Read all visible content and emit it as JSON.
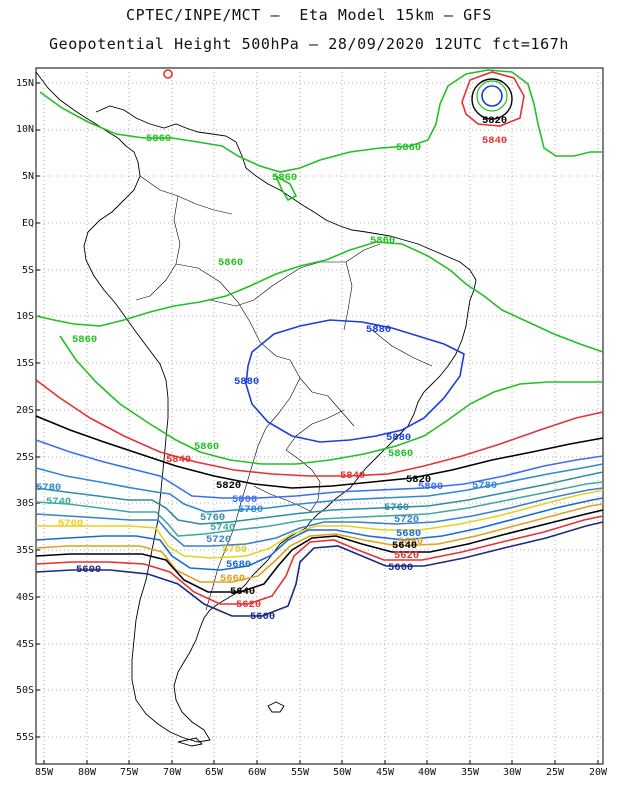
{
  "header": {
    "line1": "CPTEC/INPE/MCT –  Eta Model 15km – GFS",
    "line2": "Geopotential Height 500hPa – 28/09/2020 12UTC fct=167h"
  },
  "axes": {
    "lat_labels": [
      "15N",
      "10N",
      "5N",
      "EQ",
      "5S",
      "10S",
      "15S",
      "20S",
      "25S",
      "30S",
      "35S",
      "40S",
      "45S",
      "50S",
      "55S"
    ],
    "lon_labels": [
      "85W",
      "80W",
      "75W",
      "70W",
      "65W",
      "60W",
      "55W",
      "50W",
      "45W",
      "40W",
      "35W",
      "30W",
      "25W",
      "20W"
    ]
  },
  "colors": {
    "c5880": "#1a3fd8",
    "c5860": "#22c022",
    "c5840": "#e63232",
    "c5820": "#000000",
    "c5800": "#3c6ef0",
    "c5780": "#2a8ad8",
    "c5760": "#2d8fa0",
    "c5740": "#40aaa0",
    "c5720": "#3a80c8",
    "c5700": "#e8d020",
    "c5680": "#1a6ad0",
    "c5660": "#e0a020",
    "c5640": "#000000",
    "c5620": "#e63232",
    "c5600": "#1a2a80",
    "coast": "#000000",
    "grid": "#999999"
  },
  "contour_labels": [
    {
      "text": "5820",
      "color": "c5820"
    },
    {
      "text": "5840",
      "color": "c5840"
    },
    {
      "text": "5860",
      "color": "c5860"
    },
    {
      "text": "5860",
      "color": "c5860"
    },
    {
      "text": "5860",
      "color": "c5860"
    },
    {
      "text": "5860",
      "color": "c5860"
    },
    {
      "text": "5860",
      "color": "c5860"
    },
    {
      "text": "5860",
      "color": "c5860"
    },
    {
      "text": "5880",
      "color": "c5880"
    },
    {
      "text": "5880",
      "color": "c5880"
    },
    {
      "text": "5880",
      "color": "c5880"
    },
    {
      "text": "5860",
      "color": "c5860"
    },
    {
      "text": "5860",
      "color": "c5860"
    },
    {
      "text": "5840",
      "color": "c5840"
    },
    {
      "text": "5840",
      "color": "c5840"
    },
    {
      "text": "5820",
      "color": "c5820"
    },
    {
      "text": "5820",
      "color": "c5820"
    },
    {
      "text": "5800",
      "color": "c5800"
    },
    {
      "text": "5800",
      "color": "c5800"
    },
    {
      "text": "5780",
      "color": "c5780"
    },
    {
      "text": "5780",
      "color": "c5780"
    },
    {
      "text": "5780",
      "color": "c5780"
    },
    {
      "text": "5760",
      "color": "c5760"
    },
    {
      "text": "5760",
      "color": "c5760"
    },
    {
      "text": "5740",
      "color": "c5740"
    },
    {
      "text": "5740",
      "color": "c5740"
    },
    {
      "text": "5720",
      "color": "c5720"
    },
    {
      "text": "5720",
      "color": "c5720"
    },
    {
      "text": "5700",
      "color": "c5700"
    },
    {
      "text": "5700",
      "color": "c5700"
    },
    {
      "text": "5680",
      "color": "c5680"
    },
    {
      "text": "5680",
      "color": "c5680"
    },
    {
      "text": "5660",
      "color": "c5660"
    },
    {
      "text": "5660",
      "color": "c5660"
    },
    {
      "text": "5640",
      "color": "c5640"
    },
    {
      "text": "5640",
      "color": "c5640"
    },
    {
      "text": "5620",
      "color": "c5620"
    },
    {
      "text": "5620",
      "color": "c5620"
    },
    {
      "text": "5600",
      "color": "c5600"
    },
    {
      "text": "5600",
      "color": "c5600"
    },
    {
      "text": "5600",
      "color": "c5600"
    }
  ]
}
